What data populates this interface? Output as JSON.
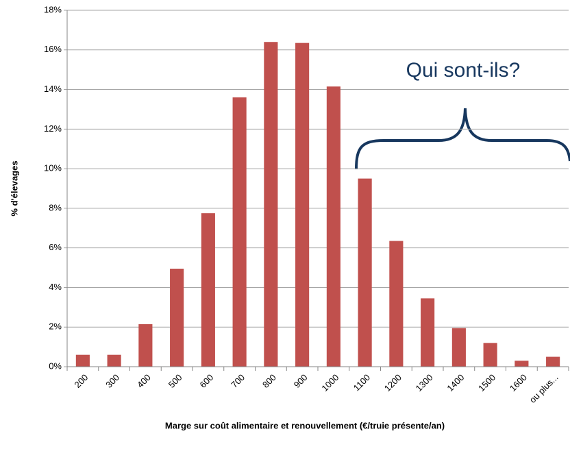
{
  "chart_data": {
    "type": "bar",
    "categories": [
      "200",
      "300",
      "400",
      "500",
      "600",
      "700",
      "800",
      "900",
      "1000",
      "1100",
      "1200",
      "1300",
      "1400",
      "1500",
      "1600",
      "ou plus..."
    ],
    "values": [
      0.6,
      0.6,
      2.15,
      4.95,
      7.75,
      13.6,
      16.4,
      16.35,
      14.15,
      9.5,
      6.35,
      3.45,
      1.95,
      1.2,
      0.3,
      0.5
    ],
    "color": "#c0504d",
    "ylim": [
      0,
      18
    ],
    "yticks": [
      {
        "value": 0,
        "label": "0%"
      },
      {
        "value": 2,
        "label": "2%"
      },
      {
        "value": 4,
        "label": "4%"
      },
      {
        "value": 6,
        "label": "6%"
      },
      {
        "value": 8,
        "label": "8%"
      },
      {
        "value": 10,
        "label": "10%"
      },
      {
        "value": 12,
        "label": "12%"
      },
      {
        "value": 14,
        "label": "14%"
      },
      {
        "value": 16,
        "label": "16%"
      },
      {
        "value": 18,
        "label": "18%"
      }
    ],
    "grid": true,
    "ylabel": "% d'élevages",
    "xlabel": "Marge sur coût alimentaire et renouvellement (€/truie présente/an)",
    "annotation": "Qui sont-ils?"
  }
}
